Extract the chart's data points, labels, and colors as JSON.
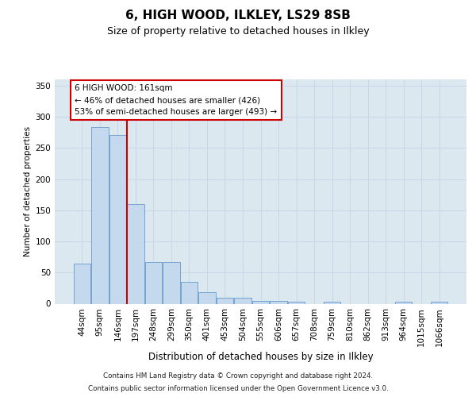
{
  "title": "6, HIGH WOOD, ILKLEY, LS29 8SB",
  "subtitle": "Size of property relative to detached houses in Ilkley",
  "xlabel": "Distribution of detached houses by size in Ilkley",
  "ylabel": "Number of detached properties",
  "bar_color": "#c5d9ee",
  "bar_edge_color": "#6699cc",
  "vline_color": "#cc0000",
  "annotation_text": "6 HIGH WOOD: 161sqm\n← 46% of detached houses are smaller (426)\n53% of semi-detached houses are larger (493) →",
  "categories": [
    "44sqm",
    "95sqm",
    "146sqm",
    "197sqm",
    "248sqm",
    "299sqm",
    "350sqm",
    "401sqm",
    "453sqm",
    "504sqm",
    "555sqm",
    "606sqm",
    "657sqm",
    "708sqm",
    "759sqm",
    "810sqm",
    "862sqm",
    "913sqm",
    "964sqm",
    "1015sqm",
    "1066sqm"
  ],
  "values": [
    64,
    283,
    271,
    160,
    67,
    67,
    35,
    19,
    9,
    9,
    5,
    4,
    3,
    0,
    3,
    0,
    0,
    0,
    3,
    0,
    3
  ],
  "ylim": [
    0,
    360
  ],
  "yticks": [
    0,
    50,
    100,
    150,
    200,
    250,
    300,
    350
  ],
  "footer_line1": "Contains HM Land Registry data © Crown copyright and database right 2024.",
  "footer_line2": "Contains public sector information licensed under the Open Government Licence v3.0.",
  "bg_color": "#dce8f0",
  "fig_color": "#ffffff",
  "grid_color": "#c8d8e8"
}
